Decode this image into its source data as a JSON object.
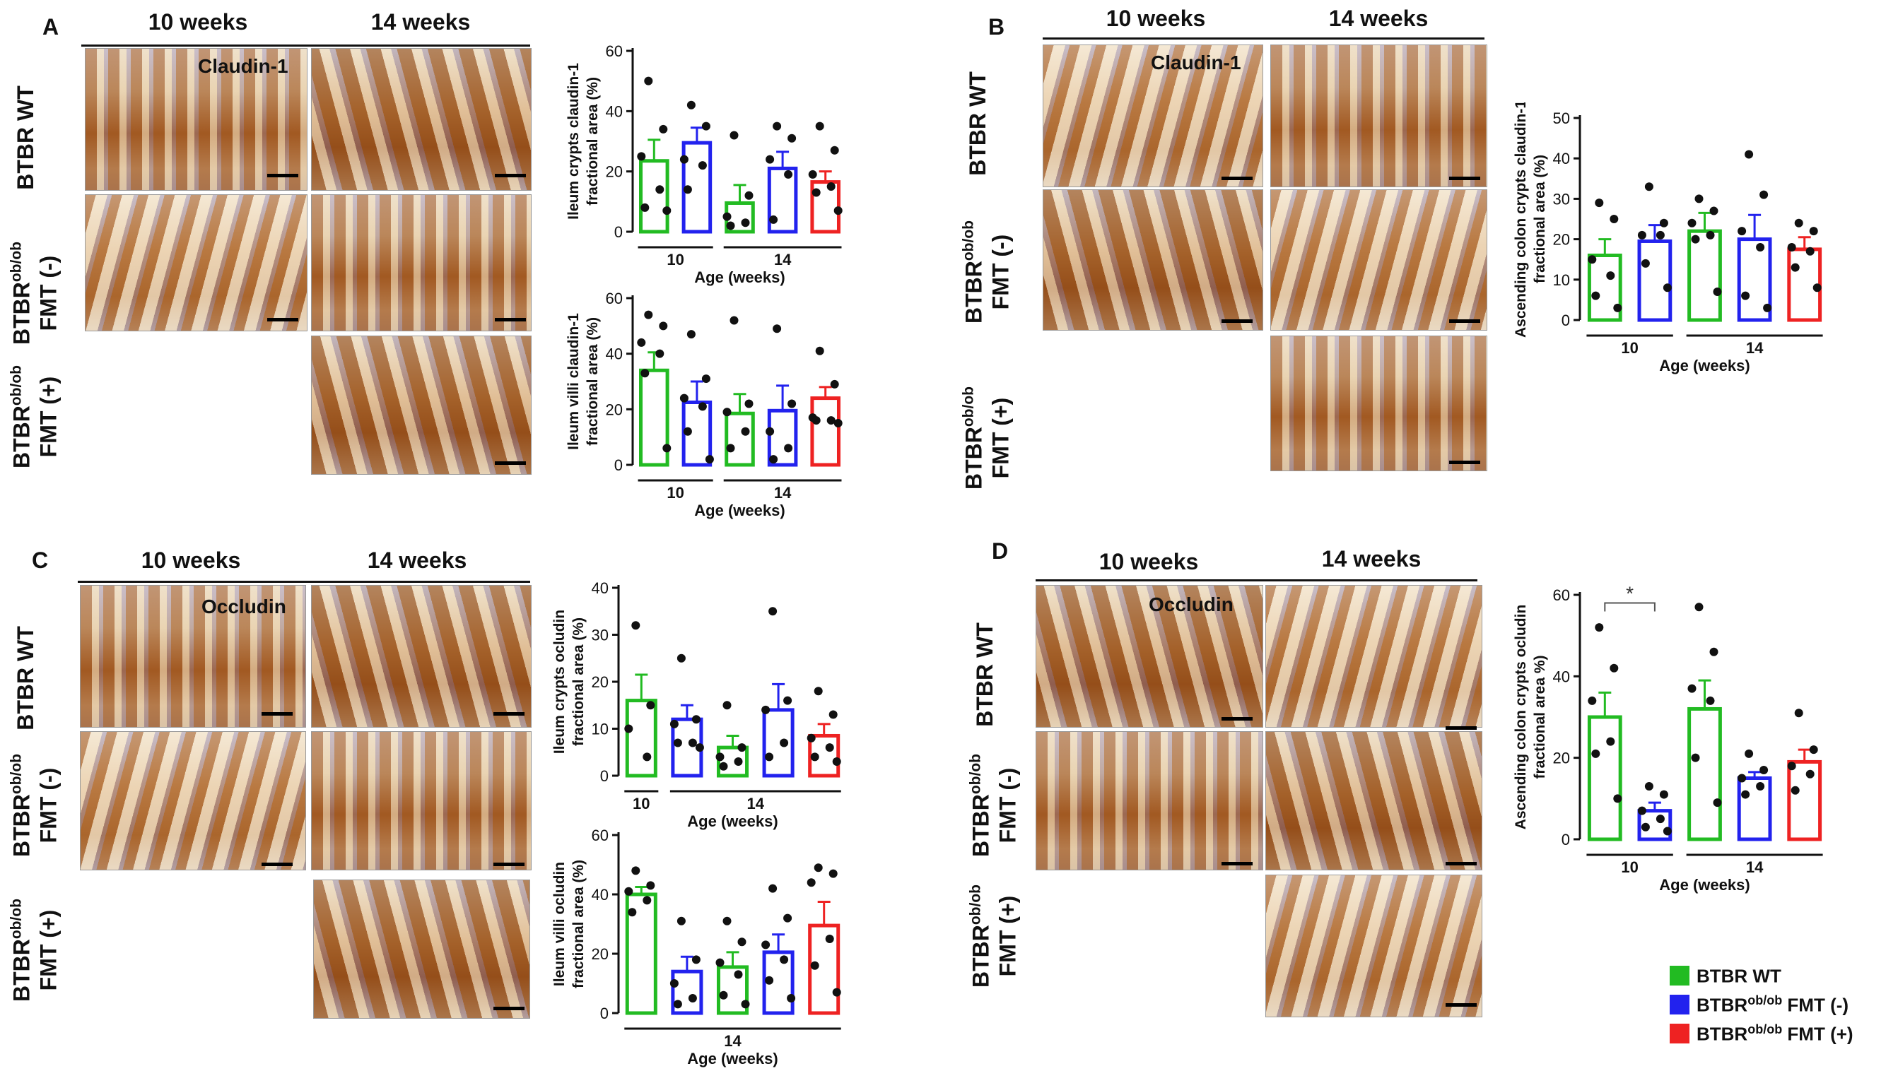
{
  "colors": {
    "wt": "#22bb22",
    "minus": "#2222ee",
    "plus": "#ee2222",
    "axis": "#111111"
  },
  "panels": {
    "A": {
      "letter": "A",
      "headers": [
        "10 weeks",
        "14 weeks"
      ],
      "rows": [
        {
          "main": "BTBR WT",
          "sup": "",
          "line2": ""
        },
        {
          "main": "BTBR",
          "sup": "ob/ob",
          "line2": "FMT (-)"
        },
        {
          "main": "BTBR",
          "sup": "ob/ob",
          "line2": "FMT (+)"
        }
      ],
      "stain": "Claudin-1"
    },
    "B": {
      "letter": "B",
      "headers": [
        "10 weeks",
        "14 weeks"
      ],
      "rows": [
        {
          "main": "BTBR WT",
          "sup": "",
          "line2": ""
        },
        {
          "main": "BTBR",
          "sup": "ob/ob",
          "line2": "FMT (-)"
        },
        {
          "main": "BTBR",
          "sup": "ob/ob",
          "line2": "FMT (+)"
        }
      ],
      "stain": "Claudin-1"
    },
    "C": {
      "letter": "C",
      "headers": [
        "10 weeks",
        "14 weeks"
      ],
      "rows": [
        {
          "main": "BTBR WT",
          "sup": "",
          "line2": ""
        },
        {
          "main": "BTBR",
          "sup": "ob/ob",
          "line2": "FMT (-)"
        },
        {
          "main": "BTBR",
          "sup": "ob/ob",
          "line2": "FMT (+)"
        }
      ],
      "stain": "Occludin"
    },
    "D": {
      "letter": "D",
      "headers": [
        "10 weeks",
        "14 weeks"
      ],
      "rows": [
        {
          "main": "BTBR WT",
          "sup": "",
          "line2": ""
        },
        {
          "main": "BTBR",
          "sup": "ob/ob",
          "line2": "FMT (-)"
        },
        {
          "main": "BTBR",
          "sup": "ob/ob",
          "line2": "FMT (+)"
        }
      ],
      "stain": "Occludin"
    }
  },
  "legend": [
    {
      "main": "BTBR WT",
      "sup": "",
      "suffix": "",
      "color": "#22bb22"
    },
    {
      "main": "BTBR",
      "sup": "ob/ob",
      "suffix": " FMT (-)",
      "color": "#2222ee"
    },
    {
      "main": "BTBR",
      "sup": "ob/ob",
      "suffix": " FMT (+)",
      "color": "#ee2222"
    }
  ],
  "chart_data": [
    {
      "id": "A1",
      "type": "bar",
      "ylabel": [
        "Ileum crypts claudin-1",
        "fractional area (%)"
      ],
      "xlabel": "Age (weeks)",
      "ylim": [
        0,
        60
      ],
      "ticks": [
        0,
        20,
        40,
        60
      ],
      "groups": [
        {
          "label": "10",
          "from": 0,
          "to": 1
        },
        {
          "label": "14",
          "from": 2,
          "to": 4
        }
      ],
      "bars": [
        {
          "value": 23.5,
          "sem": 7,
          "color": "wt",
          "points": [
            50,
            34,
            25,
            14,
            8,
            7
          ]
        },
        {
          "value": 29.5,
          "sem": 5,
          "color": "minus",
          "points": [
            42,
            35,
            24,
            22,
            14
          ]
        },
        {
          "value": 9.5,
          "sem": 6,
          "color": "wt",
          "points": [
            32,
            12,
            5,
            3,
            2
          ]
        },
        {
          "value": 21,
          "sem": 5.5,
          "color": "minus",
          "points": [
            35,
            31,
            24,
            19,
            4
          ]
        },
        {
          "value": 16.5,
          "sem": 3.5,
          "color": "plus",
          "points": [
            35,
            27,
            19,
            15,
            13,
            7
          ]
        }
      ],
      "significance": null
    },
    {
      "id": "A2",
      "type": "bar",
      "ylabel": [
        "Ileum villi claudin-1",
        "fractional area (%)"
      ],
      "xlabel": "Age (weeks)",
      "ylim": [
        0,
        60
      ],
      "ticks": [
        0,
        20,
        40,
        60
      ],
      "groups": [
        {
          "label": "10",
          "from": 0,
          "to": 1
        },
        {
          "label": "14",
          "from": 2,
          "to": 4
        }
      ],
      "bars": [
        {
          "value": 34,
          "sem": 6.5,
          "color": "wt",
          "points": [
            54,
            50,
            44,
            40,
            33,
            6
          ]
        },
        {
          "value": 22.5,
          "sem": 7.5,
          "color": "minus",
          "points": [
            47,
            31,
            24,
            21,
            12,
            2
          ]
        },
        {
          "value": 18.5,
          "sem": 7,
          "color": "wt",
          "points": [
            52,
            22,
            19,
            12,
            6
          ]
        },
        {
          "value": 19.5,
          "sem": 9,
          "color": "minus",
          "points": [
            49,
            22,
            12,
            6,
            2
          ]
        },
        {
          "value": 24,
          "sem": 4,
          "color": "plus",
          "points": [
            41,
            29,
            17,
            16,
            16,
            15
          ]
        }
      ],
      "significance": null
    },
    {
      "id": "B",
      "type": "bar",
      "ylabel": [
        "Ascending colon crypts claudin-1",
        "fractional area (%)"
      ],
      "xlabel": "Age (weeks)",
      "ylim": [
        0,
        50
      ],
      "ticks": [
        0,
        10,
        20,
        30,
        40,
        50
      ],
      "groups": [
        {
          "label": "10",
          "from": 0,
          "to": 1
        },
        {
          "label": "14",
          "from": 2,
          "to": 4
        }
      ],
      "bars": [
        {
          "value": 16,
          "sem": 4,
          "color": "wt",
          "points": [
            29,
            25,
            15,
            11,
            6,
            3
          ]
        },
        {
          "value": 19.5,
          "sem": 4,
          "color": "minus",
          "points": [
            33,
            24,
            21,
            21,
            14,
            8
          ]
        },
        {
          "value": 22,
          "sem": 4.5,
          "color": "wt",
          "points": [
            30,
            27,
            24,
            21,
            20,
            7
          ]
        },
        {
          "value": 20,
          "sem": 6,
          "color": "minus",
          "points": [
            41,
            31,
            22,
            18,
            6,
            3
          ]
        },
        {
          "value": 17.5,
          "sem": 3,
          "color": "plus",
          "points": [
            24,
            22,
            18,
            17,
            13,
            8
          ]
        }
      ],
      "significance": null
    },
    {
      "id": "C1",
      "type": "bar",
      "ylabel": [
        "Ileum crypts ocludin",
        "fractional area (%)"
      ],
      "xlabel": "Age (weeks)",
      "ylim": [
        0,
        40
      ],
      "ticks": [
        0,
        10,
        20,
        30,
        40
      ],
      "groups": [
        {
          "label": "10",
          "from": 0,
          "to": 0
        },
        {
          "label": "14",
          "from": 1,
          "to": 4
        }
      ],
      "bars": [
        {
          "value": 16,
          "sem": 5.5,
          "color": "wt",
          "points": [
            32,
            15,
            10,
            4
          ]
        },
        {
          "value": 12,
          "sem": 3,
          "color": "minus",
          "points": [
            25,
            12,
            11,
            7,
            7,
            6
          ]
        },
        {
          "value": 6,
          "sem": 2.5,
          "color": "wt",
          "points": [
            15,
            6,
            4,
            3,
            2
          ]
        },
        {
          "value": 14,
          "sem": 5.5,
          "color": "minus",
          "points": [
            35,
            16,
            14,
            7,
            4
          ]
        },
        {
          "value": 8.5,
          "sem": 2.5,
          "color": "plus",
          "points": [
            18,
            13,
            8,
            6,
            4,
            3
          ]
        }
      ],
      "significance": null
    },
    {
      "id": "C2",
      "type": "bar",
      "ylabel": [
        "Ileum  villi ocludin",
        "fractional area (%)"
      ],
      "xlabel": "Age (weeks)",
      "ylim": [
        0,
        60
      ],
      "ticks": [
        0,
        20,
        40,
        60
      ],
      "groups": [
        {
          "label": "14",
          "from": 0,
          "to": 4
        }
      ],
      "bars": [
        {
          "value": 40,
          "sem": 2.5,
          "color": "wt",
          "points": [
            48,
            43,
            41,
            38,
            34
          ]
        },
        {
          "value": 14,
          "sem": 5,
          "color": "minus",
          "points": [
            31,
            18,
            10,
            5,
            3
          ]
        },
        {
          "value": 15.5,
          "sem": 5,
          "color": "wt",
          "points": [
            31,
            24,
            17,
            13,
            6,
            3
          ]
        },
        {
          "value": 20.5,
          "sem": 6,
          "color": "minus",
          "points": [
            42,
            32,
            23,
            18,
            11,
            5
          ]
        },
        {
          "value": 29.5,
          "sem": 8,
          "color": "plus",
          "points": [
            49,
            47,
            44,
            25,
            16,
            7
          ]
        }
      ],
      "significance": null
    },
    {
      "id": "D",
      "type": "bar",
      "ylabel": [
        "Ascending colon crypts ocludin",
        "fractional area %)"
      ],
      "xlabel": "Age (weeks)",
      "ylim": [
        0,
        60
      ],
      "ticks": [
        0,
        20,
        40,
        60
      ],
      "groups": [
        {
          "label": "10",
          "from": 0,
          "to": 1
        },
        {
          "label": "14",
          "from": 2,
          "to": 4
        }
      ],
      "bars": [
        {
          "value": 30,
          "sem": 6,
          "color": "wt",
          "points": [
            52,
            42,
            34,
            24,
            21,
            10
          ]
        },
        {
          "value": 7,
          "sem": 2,
          "color": "minus",
          "points": [
            13,
            11,
            7,
            5,
            3,
            2
          ]
        },
        {
          "value": 32,
          "sem": 7,
          "color": "wt",
          "points": [
            57,
            46,
            37,
            34,
            20,
            9
          ]
        },
        {
          "value": 15,
          "sem": 1.5,
          "color": "minus",
          "points": [
            21,
            17,
            15,
            13,
            11
          ]
        },
        {
          "value": 19,
          "sem": 3,
          "color": "plus",
          "points": [
            31,
            22,
            18,
            16,
            12
          ]
        }
      ],
      "significance": {
        "from": 0,
        "to": 1,
        "label": "*",
        "y": 58
      }
    }
  ]
}
